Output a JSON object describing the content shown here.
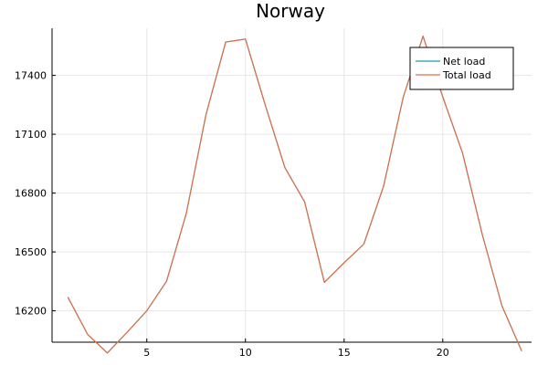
{
  "chart_data": {
    "type": "line",
    "title": "Norway",
    "xlabel": "",
    "ylabel": "",
    "xlim": [
      0.2,
      24.5
    ],
    "ylim": [
      16040,
      17640
    ],
    "xticks": [
      5,
      10,
      15,
      20
    ],
    "yticks": [
      16200,
      16500,
      16800,
      17100,
      17400
    ],
    "grid": true,
    "legend_position": "top-right",
    "x": [
      1,
      2,
      3,
      4,
      5,
      6,
      7,
      8,
      9,
      10,
      11,
      12,
      13,
      14,
      15,
      16,
      17,
      18,
      19,
      20,
      21,
      22,
      23,
      24
    ],
    "series": [
      {
        "name": "Net load",
        "color": "#1f9bb0",
        "values": [
          16270,
          16080,
          15985,
          16090,
          16200,
          16350,
          16695,
          17200,
          17570,
          17585,
          17250,
          16930,
          16755,
          16345,
          16445,
          16540,
          16835,
          17290,
          17600,
          17290,
          17005,
          16590,
          16225,
          15995
        ]
      },
      {
        "name": "Total load",
        "color": "#e26f46",
        "values": [
          16270,
          16080,
          15985,
          16090,
          16200,
          16350,
          16695,
          17200,
          17570,
          17585,
          17250,
          16930,
          16755,
          16345,
          16445,
          16540,
          16835,
          17290,
          17600,
          17290,
          17005,
          16590,
          16225,
          15995
        ]
      }
    ]
  }
}
